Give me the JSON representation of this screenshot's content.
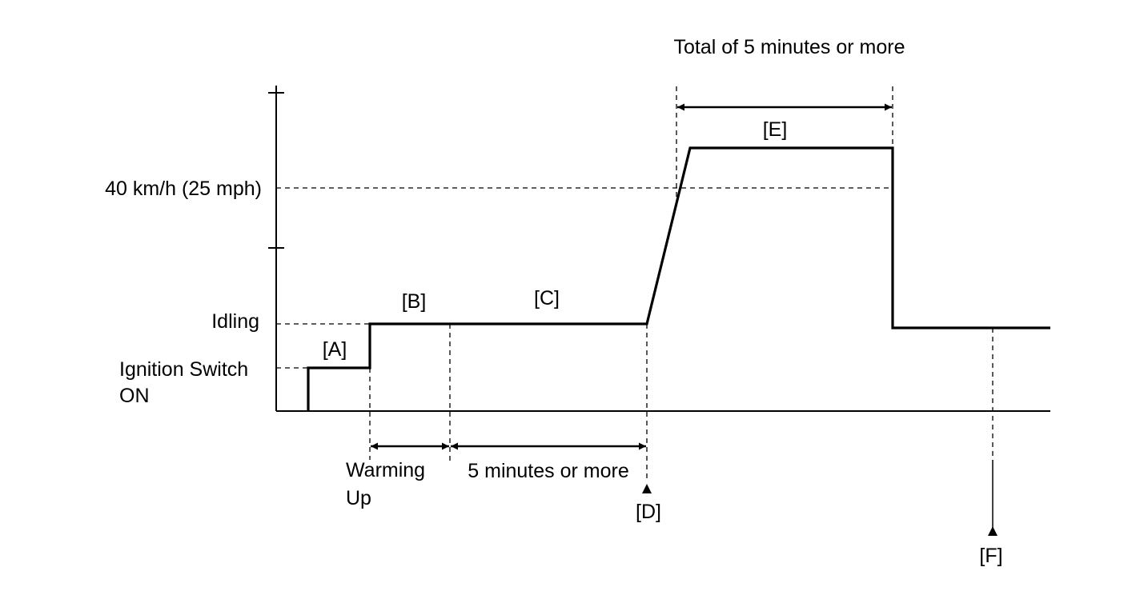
{
  "labels": {
    "total_duration": "Total of 5 minutes or more",
    "speed_threshold": "40 km/h (25 mph)",
    "idling": "Idling",
    "ignition_line1": "Ignition Switch",
    "ignition_line2": "ON",
    "warming_line1": "Warming",
    "warming_line2": "Up",
    "five_minutes": "5 minutes or more",
    "phase_a": "[A]",
    "phase_b": "[B]",
    "phase_c": "[C]",
    "phase_d": "[D]",
    "phase_e": "[E]",
    "phase_f": "[F]"
  }
}
